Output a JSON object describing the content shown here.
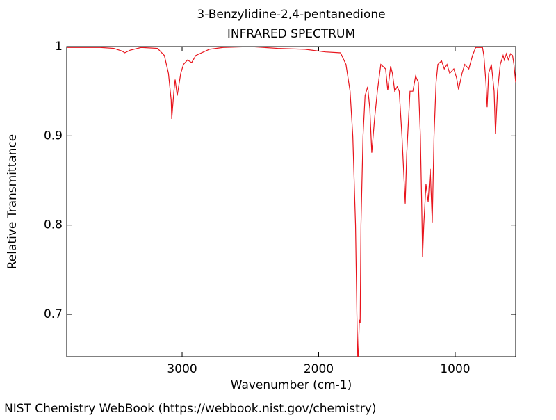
{
  "chart_data": {
    "type": "line",
    "title": "3-Benzylidine-2,4-pentanedione",
    "subtitle": "INFRARED SPECTRUM",
    "x_label": "Wavenumber (cm-1)",
    "y_label": "Relative Transmittance",
    "source": "NIST Chemistry WebBook (https://webbook.nist.gov/chemistry)",
    "color": "#e8141c",
    "xlim": [
      3845,
      557
    ],
    "ylim": [
      0.6525,
      1
    ],
    "xticks": [
      3000,
      2000,
      1000
    ],
    "yticks": [
      0.7,
      0.8,
      0.9,
      1
    ],
    "x": [
      3845,
      3600,
      3500,
      3440,
      3420,
      3380,
      3300,
      3180,
      3130,
      3100,
      3080,
      3076,
      3060,
      3051,
      3036,
      3010,
      2990,
      2960,
      2930,
      2900,
      2800,
      2700,
      2500,
      2300,
      2100,
      1950,
      1840,
      1800,
      1770,
      1750,
      1730,
      1720,
      1712,
      1702,
      1696,
      1690,
      1675,
      1660,
      1641,
      1625,
      1611,
      1590,
      1570,
      1545,
      1510,
      1494,
      1473,
      1460,
      1443,
      1425,
      1410,
      1390,
      1366,
      1355,
      1331,
      1310,
      1290,
      1270,
      1255,
      1245,
      1239,
      1230,
      1214,
      1198,
      1183,
      1168,
      1155,
      1140,
      1127,
      1100,
      1080,
      1060,
      1040,
      1010,
      990,
      975,
      950,
      930,
      900,
      873,
      850,
      800,
      790,
      775,
      766,
      755,
      735,
      715,
      705,
      690,
      670,
      649,
      640,
      625,
      610,
      595,
      580,
      570,
      557
    ],
    "values": [
      0.999,
      0.999,
      0.998,
      0.995,
      0.993,
      0.996,
      0.999,
      0.998,
      0.99,
      0.97,
      0.94,
      0.919,
      0.95,
      0.963,
      0.945,
      0.97,
      0.98,
      0.985,
      0.982,
      0.99,
      0.997,
      0.999,
      1.0,
      0.998,
      0.997,
      0.994,
      0.993,
      0.98,
      0.95,
      0.9,
      0.8,
      0.7,
      0.64,
      0.694,
      0.69,
      0.8,
      0.9,
      0.945,
      0.955,
      0.93,
      0.881,
      0.92,
      0.95,
      0.98,
      0.975,
      0.951,
      0.978,
      0.97,
      0.95,
      0.955,
      0.95,
      0.9,
      0.824,
      0.88,
      0.95,
      0.95,
      0.967,
      0.96,
      0.9,
      0.82,
      0.764,
      0.8,
      0.846,
      0.826,
      0.863,
      0.803,
      0.9,
      0.96,
      0.98,
      0.984,
      0.975,
      0.98,
      0.97,
      0.975,
      0.965,
      0.952,
      0.97,
      0.98,
      0.975,
      0.99,
      0.999,
      0.999,
      0.99,
      0.96,
      0.932,
      0.97,
      0.98,
      0.95,
      0.902,
      0.95,
      0.98,
      0.99,
      0.985,
      0.992,
      0.985,
      0.992,
      0.99,
      0.98,
      0.96
    ]
  }
}
